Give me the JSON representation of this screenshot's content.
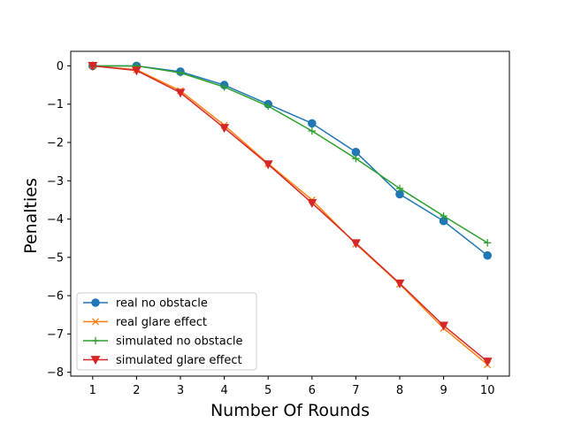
{
  "chart_data": {
    "type": "line",
    "title": "",
    "xlabel": "Number Of Rounds",
    "ylabel": "Penalties",
    "x": [
      1,
      2,
      3,
      4,
      5,
      6,
      7,
      8,
      9,
      10
    ],
    "xticks": [
      "1",
      "2",
      "3",
      "4",
      "5",
      "6",
      "7",
      "8",
      "9",
      "10"
    ],
    "yticks": [
      0,
      -1,
      -2,
      -3,
      -4,
      -5,
      -6,
      -7,
      -8
    ],
    "xlim": [
      0.5,
      10.5
    ],
    "ylim": [
      -8.1,
      0.38
    ],
    "grid": false,
    "legend_position": "lower-left",
    "series": [
      {
        "name": "real no obstacle",
        "color": "#1f77b4",
        "marker": "circle",
        "values": [
          0,
          0,
          -0.15,
          -0.5,
          -1.0,
          -1.5,
          -2.25,
          -3.35,
          -4.05,
          -4.95
        ]
      },
      {
        "name": "real glare effect",
        "color": "#ff7f0e",
        "marker": "x",
        "values": [
          0,
          -0.1,
          -0.65,
          -1.55,
          -2.55,
          -3.5,
          -4.65,
          -5.7,
          -6.85,
          -7.8
        ]
      },
      {
        "name": "simulated no obstacle",
        "color": "#2ca02c",
        "marker": "plus",
        "values": [
          0,
          0,
          -0.18,
          -0.55,
          -1.05,
          -1.7,
          -2.42,
          -3.2,
          -3.92,
          -4.62
        ]
      },
      {
        "name": "simulated glare effect",
        "color": "#d62728",
        "marker": "triangle-down",
        "values": [
          0,
          -0.12,
          -0.7,
          -1.62,
          -2.57,
          -3.58,
          -4.63,
          -5.68,
          -6.78,
          -7.72
        ]
      }
    ]
  }
}
